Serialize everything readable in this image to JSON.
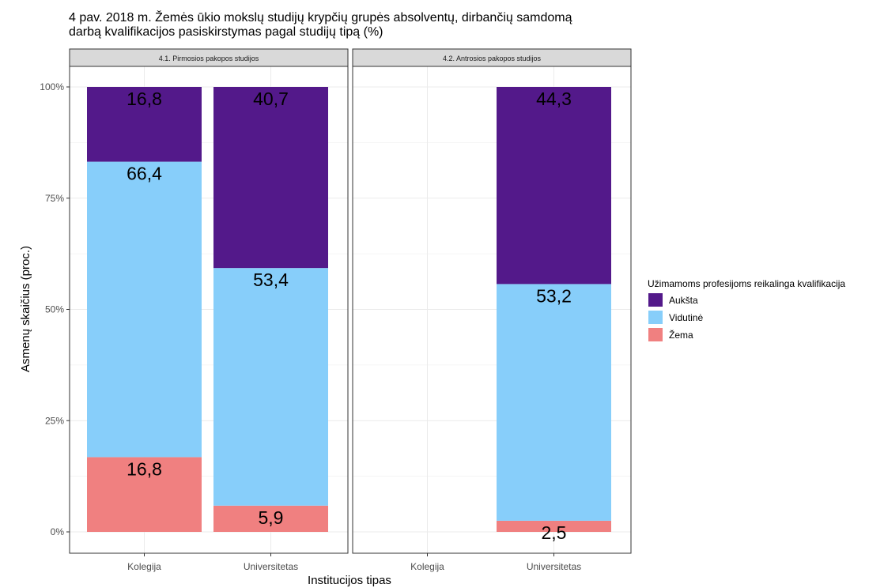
{
  "chart_data": {
    "type": "bar",
    "stacked": true,
    "title": "4 pav. 2018 m.  Žemės ūkio mokslų  studijų krypčių grupės absolventų, dirbančių samdomą\n darbą  kvalifikacijos pasiskirstymas pagal studijų tipą (%)",
    "xlabel": "Institucijos tipas",
    "ylabel": "Asmenų skaičius (proc.)",
    "ylim": [
      0,
      100
    ],
    "yticks": [
      "0%",
      "25%",
      "50%",
      "75%",
      "100%"
    ],
    "ytick_values": [
      0,
      25,
      50,
      75,
      100
    ],
    "categories": [
      "Kolegija",
      "Universitetas"
    ],
    "grid": true,
    "legend": {
      "title": "Užimamoms profesijoms reikalinga kvalifikacija",
      "position": "right",
      "items": [
        {
          "name": "Aukšta",
          "color": "#53198A"
        },
        {
          "name": "Vidutinė",
          "color": "#87CEFA"
        },
        {
          "name": "Žema",
          "color": "#F08080"
        }
      ]
    },
    "panels": [
      {
        "strip": "4.1. Pirmosios pakopos studijos",
        "bars": [
          {
            "category": "Kolegija",
            "segments": [
              {
                "series": "Žema",
                "value": 16.8,
                "label": "16,8"
              },
              {
                "series": "Vidutinė",
                "value": 66.4,
                "label": "66,4"
              },
              {
                "series": "Aukšta",
                "value": 16.8,
                "label": "16,8"
              }
            ]
          },
          {
            "category": "Universitetas",
            "segments": [
              {
                "series": "Žema",
                "value": 5.9,
                "label": "5,9"
              },
              {
                "series": "Vidutinė",
                "value": 53.4,
                "label": "53,4"
              },
              {
                "series": "Aukšta",
                "value": 40.7,
                "label": "40,7"
              }
            ]
          }
        ]
      },
      {
        "strip": "4.2. Antrosios pakopos studijos",
        "bars": [
          {
            "category": "Kolegija",
            "segments": []
          },
          {
            "category": "Universitetas",
            "segments": [
              {
                "series": "Žema",
                "value": 2.5,
                "label": "2,5"
              },
              {
                "series": "Vidutinė",
                "value": 53.2,
                "label": "53,2"
              },
              {
                "series": "Aukšta",
                "value": 44.3,
                "label": "44,3"
              }
            ]
          }
        ]
      }
    ]
  }
}
